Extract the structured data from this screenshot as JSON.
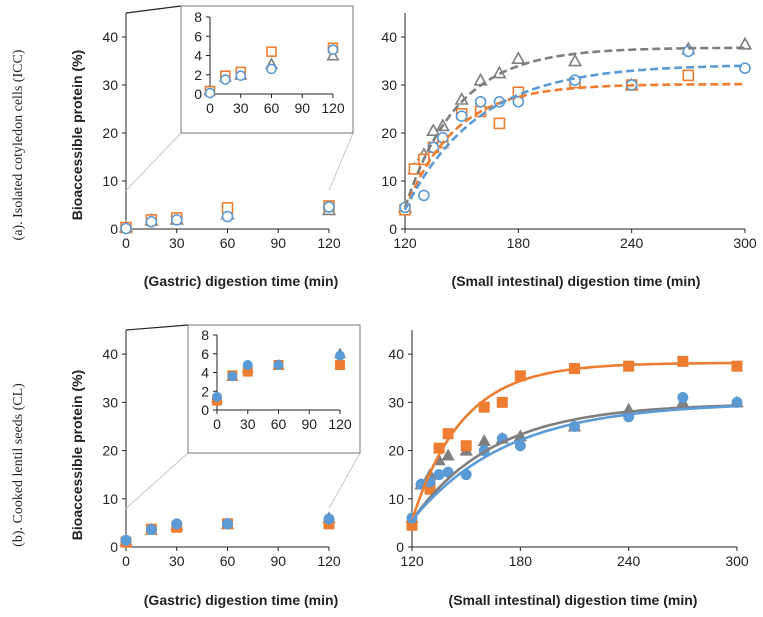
{
  "colors": {
    "grey": "#7f7f7f",
    "blue": "#5b9bd5",
    "orange": "#ed7d31",
    "axis": "#222222",
    "leader": "#c8c8c8"
  },
  "chart_data": [
    {
      "id": "a_gastric",
      "type": "scatter",
      "row_label": "(a). Isolated cotyledon cells (ICC)",
      "xlabel": "(Gastric) digestion time (min)",
      "ylabel": "Bioaccessible protein (%)",
      "xlim": [
        0,
        120
      ],
      "ylim": [
        0,
        45
      ],
      "xticks": [
        0,
        30,
        60,
        90,
        120
      ],
      "yticks": [
        0,
        10,
        20,
        30,
        40
      ],
      "marker_style": "open",
      "series": [
        {
          "name": "grey",
          "marker": "triangle",
          "x": [
            0,
            15,
            30,
            60,
            120
          ],
          "y": [
            0.4,
            1.8,
            2.0,
            3.1,
            4.0
          ]
        },
        {
          "name": "orange",
          "marker": "square",
          "x": [
            0,
            15,
            30,
            60,
            120
          ],
          "y": [
            0.3,
            1.9,
            2.3,
            4.4,
            4.8
          ]
        },
        {
          "name": "blue",
          "marker": "circle",
          "x": [
            0,
            15,
            30,
            60,
            120
          ],
          "y": [
            0.1,
            1.5,
            1.9,
            2.6,
            4.6
          ]
        }
      ],
      "inset": {
        "xlim": [
          0,
          120
        ],
        "ylim": [
          0,
          8
        ],
        "xticks": [
          0,
          30,
          60,
          90,
          120
        ],
        "yticks": [
          0,
          2,
          4,
          6,
          8
        ]
      }
    },
    {
      "id": "a_intestinal",
      "type": "scatter",
      "xlabel": "(Small intestinal) digestion time (min)",
      "xlim": [
        120,
        300
      ],
      "ylim": [
        0,
        45
      ],
      "xticks": [
        120,
        180,
        240,
        300
      ],
      "yticks": [
        0,
        10,
        20,
        30,
        40
      ],
      "marker_style": "open",
      "fit_style": "dashed",
      "series": [
        {
          "name": "grey",
          "marker": "triangle",
          "x": [
            120,
            125,
            130,
            135,
            140,
            150,
            160,
            170,
            180,
            210,
            240,
            270,
            300
          ],
          "y": [
            4.5,
            12.5,
            15.5,
            20.5,
            21.5,
            27.0,
            31.0,
            32.5,
            35.5,
            35.0,
            30.0,
            37.5,
            38.5
          ],
          "fit": {
            "y0": 4.5,
            "ymax": 37.8,
            "k": 0.036
          }
        },
        {
          "name": "orange",
          "marker": "square",
          "x": [
            120,
            125,
            130,
            135,
            140,
            150,
            160,
            170,
            180,
            210,
            240,
            270
          ],
          "y": [
            4.0,
            12.5,
            14.5,
            17.0,
            18.0,
            24.0,
            24.5,
            22.0,
            28.5,
            30.5,
            30.0,
            32.0
          ],
          "fit": {
            "y0": 4.0,
            "ymax": 30.2,
            "k": 0.038
          }
        },
        {
          "name": "blue",
          "marker": "circle",
          "x": [
            120,
            130,
            135,
            140,
            150,
            160,
            170,
            180,
            210,
            240,
            270,
            300
          ],
          "y": [
            4.5,
            7.0,
            17.0,
            19.0,
            23.5,
            26.5,
            26.5,
            26.5,
            31.0,
            30.0,
            37.0,
            33.5
          ],
          "fit": {
            "y0": 4.0,
            "ymax": 34.3,
            "k": 0.026
          }
        }
      ]
    },
    {
      "id": "b_gastric",
      "type": "scatter",
      "row_label": "(b). Cooked lentil seeds (CL)",
      "xlabel": "(Gastric) digestion time (min)",
      "ylabel": "Bioaccessible protein (%)",
      "xlim": [
        0,
        120
      ],
      "ylim": [
        0,
        45
      ],
      "xticks": [
        0,
        30,
        60,
        90,
        120
      ],
      "yticks": [
        0,
        10,
        20,
        30,
        40
      ],
      "marker_style": "filled",
      "series": [
        {
          "name": "grey",
          "marker": "triangle",
          "x": [
            0,
            15,
            30,
            60,
            120
          ],
          "y": [
            1.3,
            3.6,
            4.5,
            4.8,
            6.0
          ]
        },
        {
          "name": "orange",
          "marker": "square",
          "x": [
            0,
            15,
            30,
            60,
            120
          ],
          "y": [
            1.0,
            3.7,
            4.1,
            4.8,
            4.8
          ]
        },
        {
          "name": "blue",
          "marker": "circle",
          "x": [
            0,
            15,
            30,
            60,
            120
          ],
          "y": [
            1.4,
            3.6,
            4.8,
            4.8,
            5.8
          ]
        }
      ],
      "inset": {
        "xlim": [
          0,
          120
        ],
        "ylim": [
          0,
          8
        ],
        "xticks": [
          0,
          30,
          60,
          90,
          120
        ],
        "yticks": [
          0,
          2,
          4,
          6,
          8
        ]
      }
    },
    {
      "id": "b_intestinal",
      "type": "scatter",
      "xlabel": "(Small intestinal) digestion time (min)",
      "xlim": [
        120,
        300
      ],
      "ylim": [
        0,
        45
      ],
      "xticks": [
        120,
        180,
        240,
        300
      ],
      "yticks": [
        0,
        10,
        20,
        30,
        40
      ],
      "marker_style": "filled",
      "fit_style": "solid",
      "series": [
        {
          "name": "grey",
          "marker": "triangle",
          "x": [
            120,
            125,
            130,
            135,
            140,
            150,
            160,
            170,
            180,
            210,
            240,
            270,
            300
          ],
          "y": [
            6.0,
            13.0,
            15.0,
            18.0,
            19.0,
            20.0,
            22.0,
            22.5,
            23.0,
            25.0,
            28.5,
            30.0,
            30.0
          ],
          "fit": {
            "y0": 5.5,
            "ymax": 29.8,
            "k": 0.022
          }
        },
        {
          "name": "orange",
          "marker": "square",
          "x": [
            120,
            130,
            135,
            140,
            150,
            160,
            170,
            180,
            210,
            240,
            270,
            300
          ],
          "y": [
            4.5,
            12.0,
            20.5,
            23.5,
            21.0,
            29.0,
            30.0,
            35.5,
            37.0,
            37.5,
            38.5,
            37.5
          ],
          "fit": {
            "y0": 5.5,
            "ymax": 38.2,
            "k": 0.036
          }
        },
        {
          "name": "blue",
          "marker": "circle",
          "x": [
            120,
            125,
            130,
            135,
            140,
            150,
            160,
            170,
            180,
            210,
            240,
            270,
            300
          ],
          "y": [
            6.0,
            13.0,
            13.5,
            15.0,
            15.5,
            15.0,
            20.0,
            22.5,
            21.0,
            25.0,
            27.0,
            31.0,
            30.0
          ],
          "fit": {
            "y0": 5.5,
            "ymax": 30.0,
            "k": 0.019
          }
        }
      ]
    }
  ]
}
